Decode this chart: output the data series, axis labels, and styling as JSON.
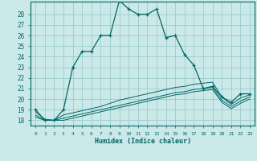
{
  "title": "",
  "xlabel": "Humidex (Indice chaleur)",
  "ylabel": "",
  "bg_color": "#cce9e9",
  "line_color": "#006666",
  "grid_color": "#99cccc",
  "xlim": [
    -0.5,
    23.5
  ],
  "ylim": [
    17.5,
    29.2
  ],
  "xticks": [
    0,
    1,
    2,
    3,
    4,
    5,
    6,
    7,
    8,
    9,
    10,
    11,
    12,
    13,
    14,
    15,
    16,
    17,
    18,
    19,
    20,
    21,
    22,
    23
  ],
  "yticks": [
    18,
    19,
    20,
    21,
    22,
    23,
    24,
    25,
    26,
    27,
    28
  ],
  "series_main": {
    "x": [
      0,
      1,
      2,
      3,
      4,
      5,
      6,
      7,
      8,
      9,
      10,
      11,
      12,
      13,
      14,
      15,
      16,
      17,
      18,
      19,
      20,
      21,
      22,
      23
    ],
    "y": [
      19,
      18,
      18,
      19,
      23,
      24.5,
      24.5,
      26,
      26,
      29.3,
      28.5,
      28,
      28,
      28.5,
      25.8,
      26,
      24.2,
      23.2,
      21,
      21.2,
      20.2,
      19.7,
      20.5,
      20.5
    ]
  },
  "series_flat": [
    {
      "x": [
        0,
        1,
        2,
        3,
        4,
        5,
        6,
        7,
        8,
        9,
        10,
        11,
        12,
        13,
        14,
        15,
        16,
        17,
        18,
        19,
        20,
        21,
        22,
        23
      ],
      "y": [
        18.8,
        18.1,
        18.0,
        18.5,
        18.7,
        18.9,
        19.1,
        19.3,
        19.6,
        19.9,
        20.1,
        20.3,
        20.5,
        20.7,
        20.9,
        21.1,
        21.2,
        21.4,
        21.5,
        21.6,
        20.2,
        19.5,
        20.1,
        20.4
      ]
    },
    {
      "x": [
        0,
        1,
        2,
        3,
        4,
        5,
        6,
        7,
        8,
        9,
        10,
        11,
        12,
        13,
        14,
        15,
        16,
        17,
        18,
        19,
        20,
        21,
        22,
        23
      ],
      "y": [
        18.5,
        18.0,
        18.0,
        18.2,
        18.4,
        18.6,
        18.8,
        19.0,
        19.2,
        19.4,
        19.6,
        19.8,
        20.0,
        20.2,
        20.4,
        20.6,
        20.7,
        20.9,
        21.0,
        21.1,
        19.9,
        19.3,
        19.8,
        20.2
      ]
    },
    {
      "x": [
        0,
        1,
        2,
        3,
        4,
        5,
        6,
        7,
        8,
        9,
        10,
        11,
        12,
        13,
        14,
        15,
        16,
        17,
        18,
        19,
        20,
        21,
        22,
        23
      ],
      "y": [
        18.3,
        18.0,
        18.0,
        18.0,
        18.2,
        18.4,
        18.6,
        18.8,
        19.0,
        19.2,
        19.4,
        19.6,
        19.8,
        20.0,
        20.2,
        20.4,
        20.5,
        20.7,
        20.8,
        20.9,
        19.7,
        19.1,
        19.6,
        20.0
      ]
    }
  ]
}
